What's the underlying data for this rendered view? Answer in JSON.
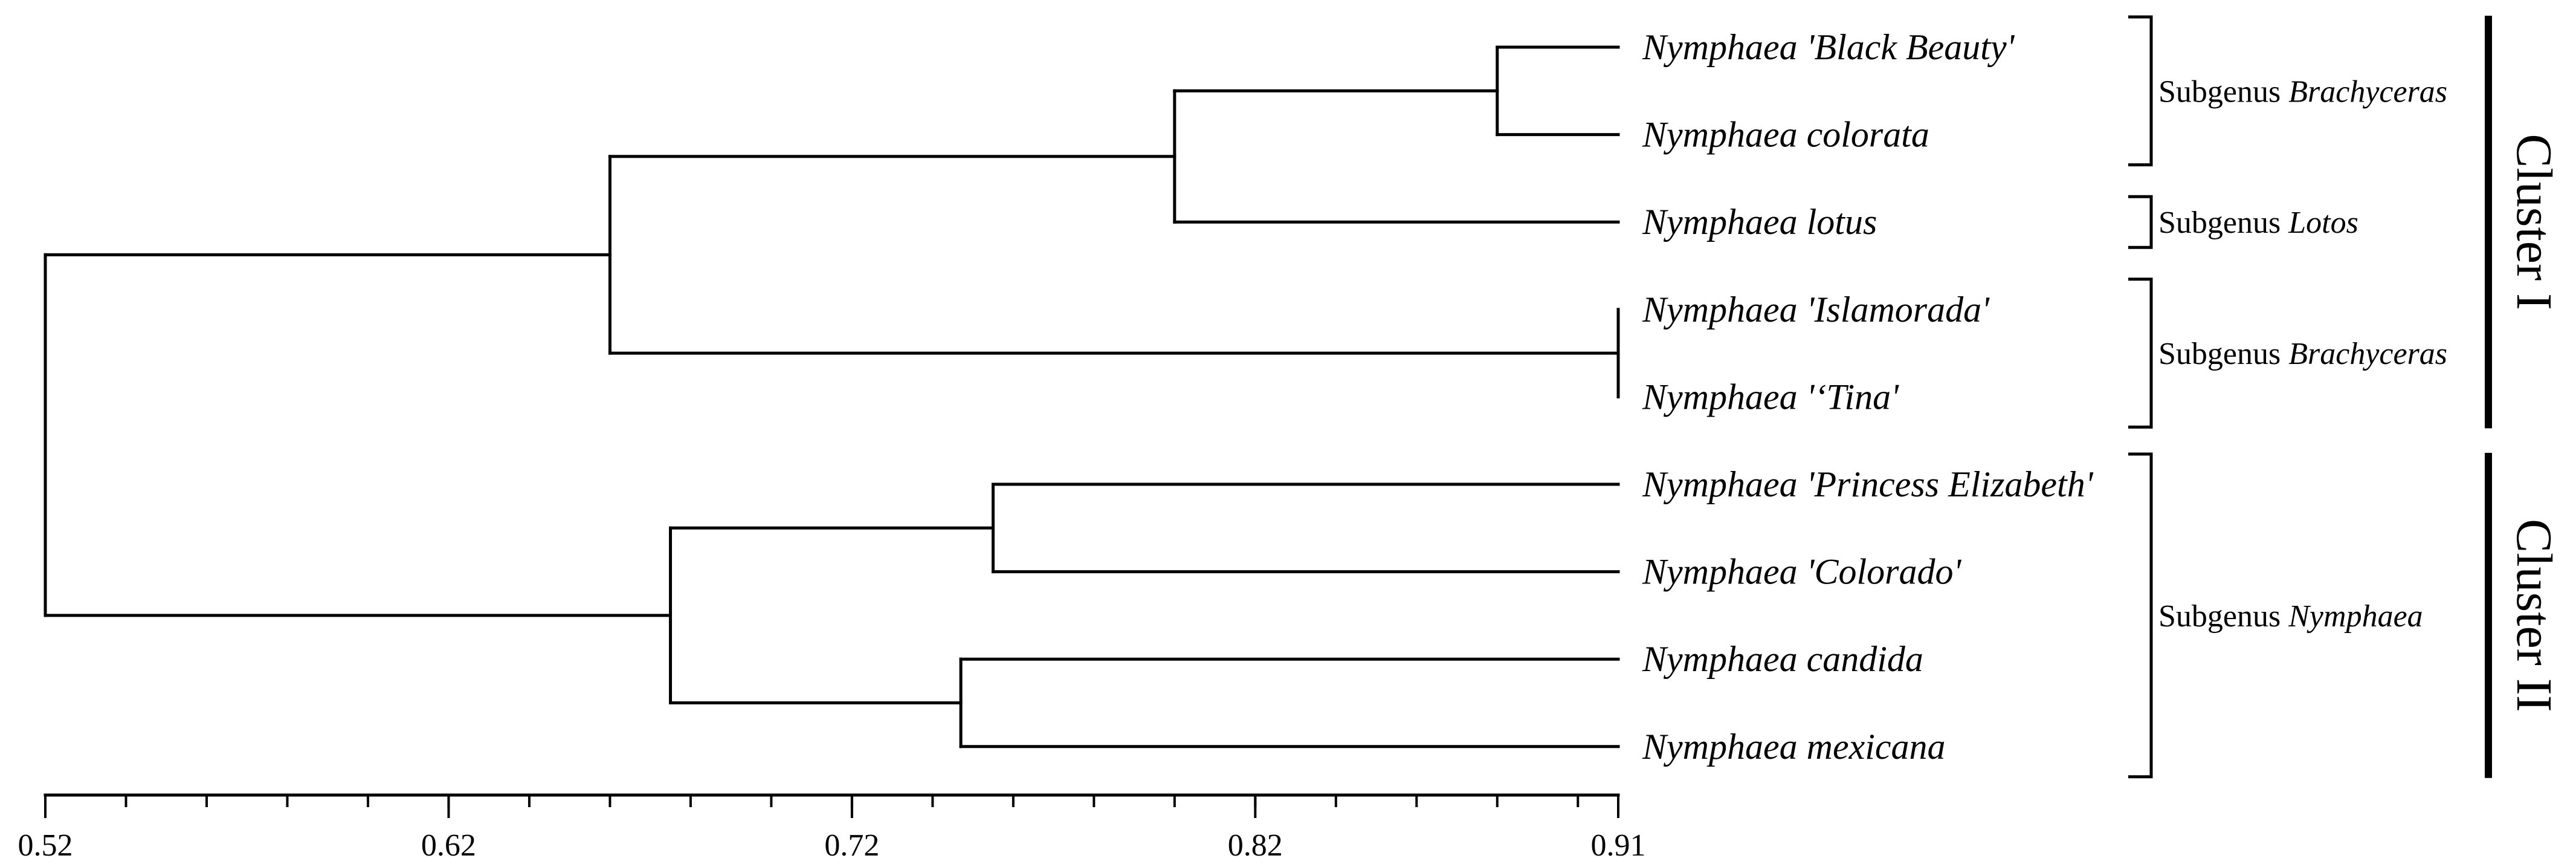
{
  "chart_data": {
    "type": "dendrogram",
    "axis": {
      "min": 0.52,
      "max": 0.91,
      "major_ticks": [
        0.52,
        0.62,
        0.72,
        0.82,
        0.91
      ],
      "tick_labels": [
        "0.52",
        "0.62",
        "0.72",
        "0.82",
        "0.91"
      ],
      "minor_step": 0.02
    },
    "leaves": [
      "Nymphaea 'Black Beauty'",
      "Nymphaea colorata",
      "Nymphaea lotus",
      "Nymphaea 'Islamorada'",
      "Nymphaea '‘Tina'",
      "Nymphaea 'Princess Elizabeth'",
      "Nymphaea 'Colorado'",
      "Nymphaea candida",
      "Nymphaea mexicana"
    ],
    "merges": [
      {
        "id": "n1",
        "children": [
          "L0",
          "L1"
        ],
        "similarity": 0.88
      },
      {
        "id": "n2",
        "children": [
          "n1",
          "L2"
        ],
        "similarity": 0.8
      },
      {
        "id": "n3",
        "children": [
          "L3",
          "L4"
        ],
        "similarity": 0.91
      },
      {
        "id": "n4",
        "children": [
          "n2",
          "n3"
        ],
        "similarity": 0.66
      },
      {
        "id": "n5",
        "children": [
          "L5",
          "L6"
        ],
        "similarity": 0.755
      },
      {
        "id": "n6",
        "children": [
          "L7",
          "L8"
        ],
        "similarity": 0.747
      },
      {
        "id": "n7",
        "children": [
          "n5",
          "n6"
        ],
        "similarity": 0.675
      },
      {
        "id": "n8",
        "children": [
          "n4",
          "n7"
        ],
        "similarity": 0.52
      }
    ],
    "subgenus_groups": [
      {
        "prefix": "Subgenus ",
        "name": "Brachyceras",
        "first_leaf": 0,
        "last_leaf": 1
      },
      {
        "prefix": "Subgenus ",
        "name": "Lotos",
        "first_leaf": 2,
        "last_leaf": 2
      },
      {
        "prefix": "Subgenus ",
        "name": "Brachyceras",
        "first_leaf": 3,
        "last_leaf": 4
      },
      {
        "prefix": "Subgenus ",
        "name": "Nymphaea",
        "first_leaf": 5,
        "last_leaf": 8
      }
    ],
    "clusters": [
      {
        "label": "Cluster I",
        "first_leaf": 0,
        "last_leaf": 4
      },
      {
        "label": "Cluster II",
        "first_leaf": 5,
        "last_leaf": 8
      }
    ]
  }
}
